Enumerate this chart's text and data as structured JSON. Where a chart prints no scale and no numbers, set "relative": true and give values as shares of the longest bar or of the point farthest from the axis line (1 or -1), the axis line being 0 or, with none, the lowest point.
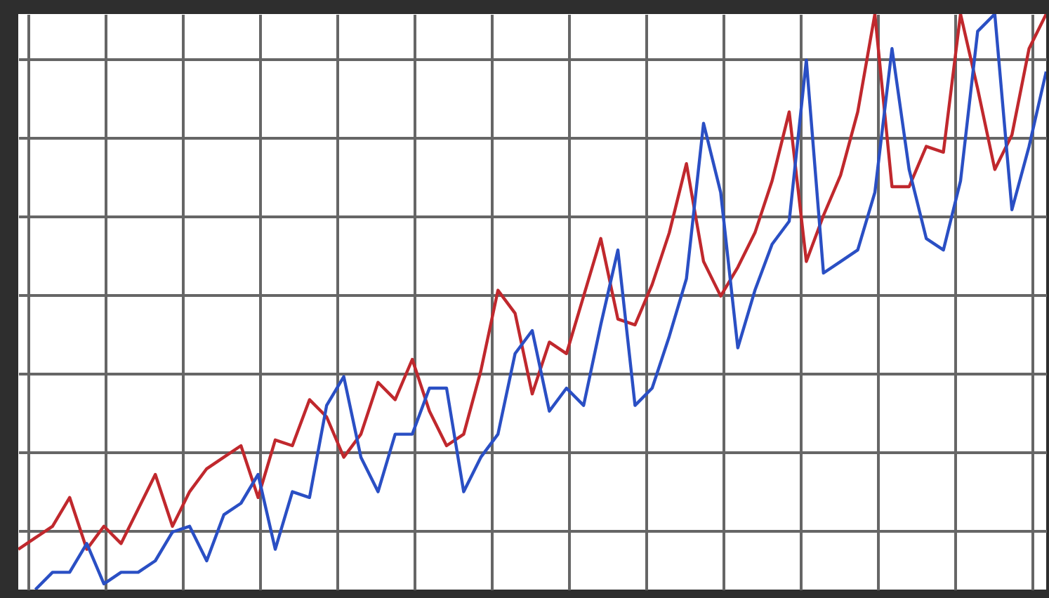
{
  "chart_data": {
    "type": "line",
    "relative": true,
    "grid": true,
    "categories": [
      null,
      null,
      null,
      null,
      null,
      null,
      null,
      null,
      null,
      null,
      null,
      null,
      null,
      null,
      null,
      null,
      null,
      null,
      null,
      null,
      null,
      null,
      null,
      null,
      null,
      null,
      null,
      null,
      null,
      null,
      null,
      null,
      null,
      null,
      null,
      null,
      null,
      null,
      null,
      null,
      null,
      null,
      null,
      null,
      null,
      null,
      null,
      null,
      null,
      null,
      null,
      null,
      null,
      null,
      null,
      null,
      null,
      null,
      null,
      null,
      null
    ],
    "series": [
      {
        "color": "#c0282d",
        "values": [
          0.07,
          0.09,
          0.11,
          0.16,
          0.07,
          0.11,
          0.08,
          0.14,
          0.2,
          0.11,
          0.17,
          0.21,
          0.23,
          0.25,
          0.16,
          0.26,
          0.25,
          0.33,
          0.3,
          0.23,
          0.27,
          0.36,
          0.33,
          0.4,
          0.31,
          0.25,
          0.27,
          0.38,
          0.52,
          0.48,
          0.34,
          0.43,
          0.41,
          0.51,
          0.61,
          0.47,
          0.46,
          0.53,
          0.62,
          0.74,
          0.57,
          0.51,
          0.56,
          0.62,
          0.71,
          0.83,
          0.57,
          0.65,
          0.72,
          0.83,
          1,
          0.7,
          0.7,
          0.77,
          0.76,
          1,
          0.87,
          0.73,
          0.79,
          0.94,
          1
        ]
      },
      {
        "color": "#2a4fc4",
        "values": [
          null,
          0,
          0.03,
          0.03,
          0.08,
          0.01,
          0.03,
          0.03,
          0.05,
          0.1,
          0.11,
          0.05,
          0.13,
          0.15,
          0.2,
          0.07,
          0.17,
          0.16,
          0.32,
          0.37,
          0.23,
          0.17,
          0.27,
          0.27,
          0.35,
          0.35,
          0.17,
          0.23,
          0.27,
          0.41,
          0.45,
          0.31,
          0.35,
          0.32,
          0.46,
          0.59,
          0.32,
          0.35,
          0.44,
          0.54,
          0.81,
          0.69,
          0.42,
          0.52,
          0.6,
          0.64,
          0.92,
          0.55,
          0.57,
          0.59,
          0.69,
          0.94,
          0.73,
          0.61,
          0.59,
          0.71,
          0.97,
          1,
          0.66,
          0.77,
          0.9
        ]
      }
    ]
  }
}
